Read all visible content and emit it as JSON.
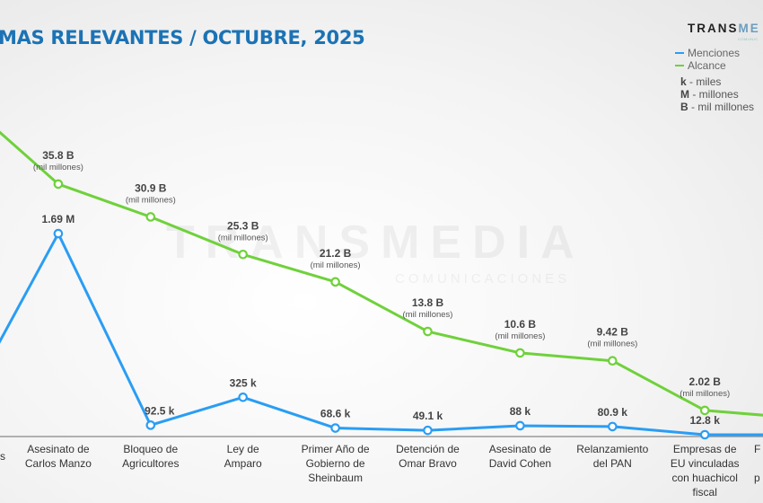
{
  "header": {
    "title": "MAS RELEVANTES / OCTUBRE, 2025",
    "logo": "TRANSMEDIA",
    "logo_sub": "COMUNICACIONES"
  },
  "watermark": {
    "text": "TRANSMEDIA",
    "sub": "COMUNICACIONES"
  },
  "legend": {
    "series": [
      {
        "label": "Menciones",
        "color": "#2a9df4"
      },
      {
        "label": "Alcance",
        "color": "#6fd13b"
      }
    ],
    "units": [
      {
        "key": "k",
        "text": "- miles"
      },
      {
        "key": "M",
        "text": "- millones"
      },
      {
        "key": "B",
        "text": "- mil millones"
      }
    ]
  },
  "chart_data": {
    "type": "line",
    "title": "MAS RELEVANTES / OCTUBRE, 2025",
    "categories": [
      "s",
      "Asesinato de Carlos Manzo",
      "Bloqueo de Agricultores",
      "Ley de Amparo",
      "Primer Año de Gobierno de Sheinbaum",
      "Detención de Omar Bravo",
      "Asesinato de David Cohen",
      "Relanzamiento del PAN",
      "Empresas de EU vinculadas con huachicol fiscal",
      "F p"
    ],
    "series": [
      {
        "name": "Alcance",
        "unit": "B",
        "color": "#6fd13b",
        "values": [
          48,
          35.8,
          30.9,
          25.3,
          21.2,
          13.8,
          10.6,
          9.42,
          2.02,
          0.9
        ],
        "labels": [
          null,
          "35.8 B",
          "30.9 B",
          "25.3 B",
          "21.2 B",
          "13.8 B",
          "10.6 B",
          "9.42 B",
          "2.02 B",
          null
        ],
        "sublabel": "(mil millones)"
      },
      {
        "name": "Menciones",
        "unit": "k",
        "color": "#2a9df4",
        "values": [
          270,
          1690,
          92.5,
          325,
          68.6,
          49.1,
          88,
          80.9,
          12.8,
          12
        ],
        "labels": [
          null,
          "1.69 M",
          "92.5 k",
          "325 k",
          "68.6 k",
          "49.1 k",
          "88 k",
          "80.9 k",
          "12.8 k",
          null
        ]
      }
    ],
    "grid": false,
    "legend_position": "top-right"
  }
}
